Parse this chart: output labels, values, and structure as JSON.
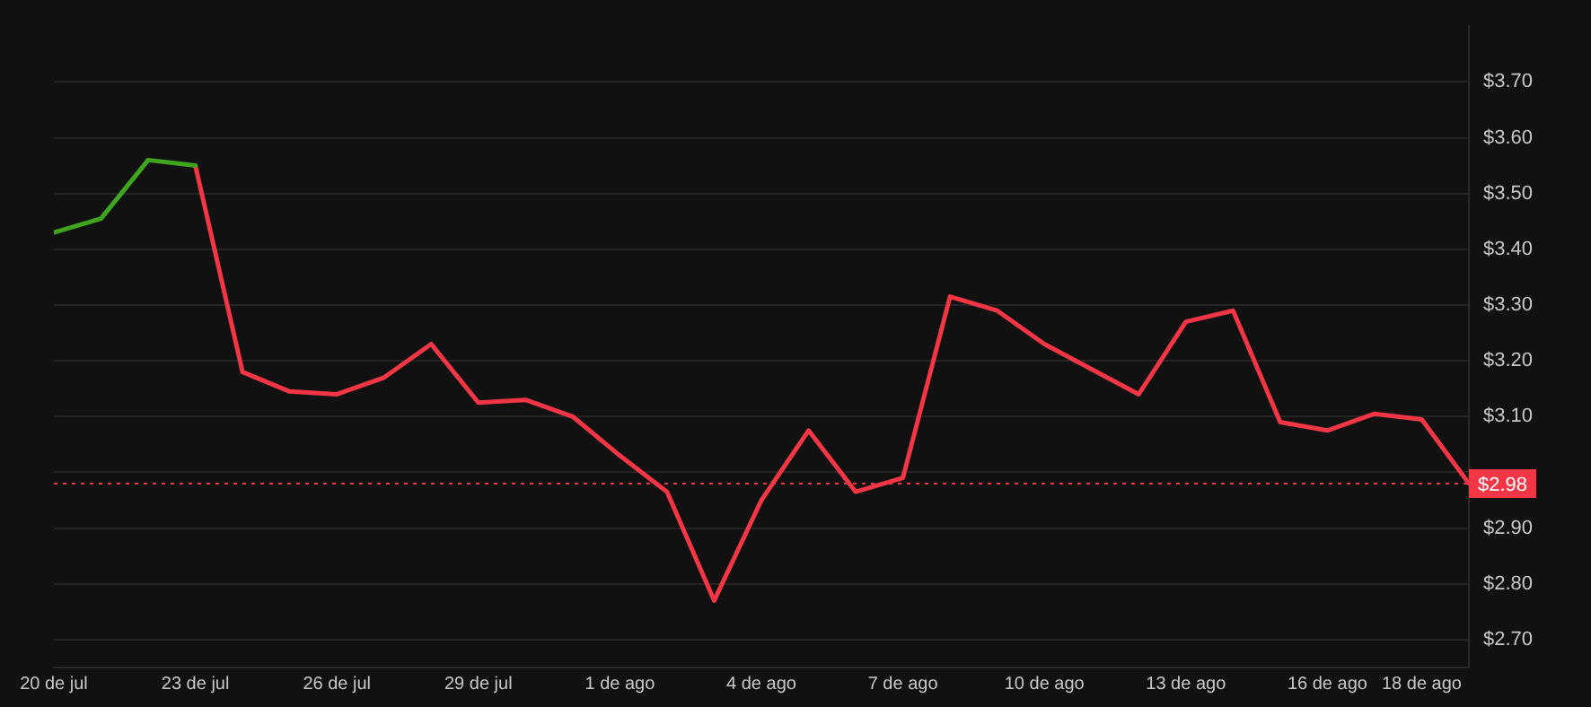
{
  "chart_data": {
    "type": "line",
    "x": [
      "--07-20",
      "--07-21",
      "--07-22",
      "--07-23",
      "--07-24",
      "--07-25",
      "--07-26",
      "--07-27",
      "--07-28",
      "--07-29",
      "--07-30",
      "--07-31",
      "--08-01",
      "--08-02",
      "--08-03",
      "--08-04",
      "--08-05",
      "--08-06",
      "--08-07",
      "--08-08",
      "--08-09",
      "--08-10",
      "--08-11",
      "--08-12",
      "--08-13",
      "--08-14",
      "--08-15",
      "--08-16",
      "--08-17",
      "--08-18",
      "--08-19"
    ],
    "series": [
      {
        "color": "#3fa51f",
        "values": [
          3.43,
          3.455,
          3.56,
          3.55,
          null,
          null,
          null,
          null,
          null,
          null,
          null,
          null,
          null,
          null,
          null,
          null,
          null,
          null,
          null,
          null,
          null,
          null,
          null,
          null,
          null,
          null,
          null,
          null,
          null,
          null,
          null
        ]
      },
      {
        "color": "#f23645",
        "values": [
          null,
          null,
          null,
          3.55,
          3.18,
          3.145,
          3.14,
          3.17,
          3.23,
          3.125,
          3.13,
          3.1,
          3.03,
          2.965,
          2.77,
          2.95,
          3.075,
          2.965,
          2.99,
          3.315,
          3.29,
          3.23,
          3.185,
          3.14,
          3.27,
          3.29,
          3.09,
          3.075,
          3.105,
          3.095,
          2.98
        ]
      }
    ],
    "xlim": [
      "--07-20",
      "--08-19"
    ],
    "xticks": [
      {
        "value": "--07-20",
        "label": "20 de jul"
      },
      {
        "value": "--07-23",
        "label": "23 de jul"
      },
      {
        "value": "--07-26",
        "label": "26 de jul"
      },
      {
        "value": "--07-29",
        "label": "29 de jul"
      },
      {
        "value": "--08-01",
        "label": "1 de ago"
      },
      {
        "value": "--08-04",
        "label": "4 de ago"
      },
      {
        "value": "--08-07",
        "label": "7 de ago"
      },
      {
        "value": "--08-10",
        "label": "10 de ago"
      },
      {
        "value": "--08-13",
        "label": "13 de ago"
      },
      {
        "value": "--08-16",
        "label": "16 de ago"
      },
      {
        "value": "--08-18",
        "label": "18 de ago"
      }
    ],
    "ylim": [
      2.65,
      3.8
    ],
    "yticks": [
      {
        "value": 2.7,
        "label": "$2.70"
      },
      {
        "value": 2.8,
        "label": "$2.80"
      },
      {
        "value": 2.9,
        "label": "$2.90"
      },
      {
        "value": 3.0,
        "label": null
      },
      {
        "value": 3.1,
        "label": "$3.10"
      },
      {
        "value": 3.2,
        "label": "$3.20"
      },
      {
        "value": 3.3,
        "label": "$3.30"
      },
      {
        "value": 3.4,
        "label": "$3.40"
      },
      {
        "value": 3.5,
        "label": "$3.50"
      },
      {
        "value": 3.6,
        "label": "$3.60"
      },
      {
        "value": 3.7,
        "label": "$3.70"
      }
    ],
    "ref_lines": [
      {
        "axis": "y",
        "value": 2.98,
        "label": "$2.98",
        "color": "#f23645",
        "line_style": "dotted"
      }
    ],
    "grid": "y",
    "legend": false,
    "marker": "none",
    "line_style": "solid"
  }
}
